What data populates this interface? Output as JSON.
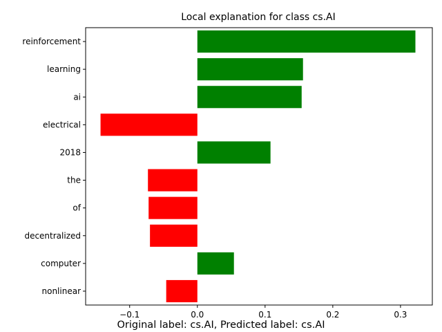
{
  "chart_data": {
    "type": "bar",
    "orientation": "horizontal",
    "title": "Local explanation for class cs.AI",
    "caption": "Original label: cs.AI, Predicted label: cs.AI",
    "xlabel": "",
    "ylabel": "",
    "categories": [
      "reinforcement",
      "learning",
      "ai",
      "electrical",
      "2018",
      "the",
      "of",
      "decentralized",
      "computer",
      "nonlinear"
    ],
    "values": [
      0.322,
      0.156,
      0.154,
      -0.143,
      0.108,
      -0.073,
      -0.072,
      -0.07,
      0.054,
      -0.046
    ],
    "xlim": [
      -0.165,
      0.347
    ],
    "xticks": [
      -0.1,
      0.0,
      0.1,
      0.2,
      0.3
    ],
    "xtick_labels": [
      "−0.1",
      "0.0",
      "0.1",
      "0.2",
      "0.3"
    ],
    "grid": false,
    "colors": {
      "positive": "#008000",
      "negative": "#ff0000"
    }
  }
}
